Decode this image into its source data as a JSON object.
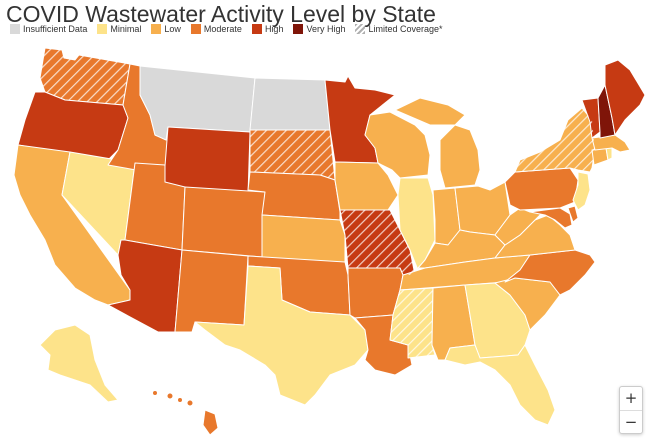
{
  "title": "COVID Wastewater Activity Level by State",
  "legend": [
    {
      "label": "Insufficient Data",
      "level": "insufficient"
    },
    {
      "label": "Minimal",
      "level": "minimal"
    },
    {
      "label": "Low",
      "level": "low"
    },
    {
      "label": "Moderate",
      "level": "moderate"
    },
    {
      "label": "High",
      "level": "high"
    },
    {
      "label": "Very High",
      "level": "veryhigh"
    },
    {
      "label": "Limited Coverage*",
      "level": "limited"
    }
  ],
  "colors": {
    "insufficient": "#d9d9d9",
    "minimal": "#fde38a",
    "low": "#f7b04e",
    "moderate": "#e8782c",
    "high": "#c63a13",
    "veryhigh": "#7f1509",
    "border": "#ffffff"
  },
  "states": {
    "WA": {
      "level": "moderate",
      "limited": true
    },
    "OR": {
      "level": "high"
    },
    "CA": {
      "level": "low"
    },
    "NV": {
      "level": "minimal"
    },
    "ID": {
      "level": "moderate"
    },
    "MT": {
      "level": "insufficient"
    },
    "WY": {
      "level": "high"
    },
    "UT": {
      "level": "moderate"
    },
    "AZ": {
      "level": "high"
    },
    "CO": {
      "level": "moderate"
    },
    "NM": {
      "level": "moderate"
    },
    "ND": {
      "level": "insufficient"
    },
    "SD": {
      "level": "moderate",
      "limited": true
    },
    "NE": {
      "level": "moderate"
    },
    "KS": {
      "level": "low"
    },
    "OK": {
      "level": "moderate"
    },
    "TX": {
      "level": "minimal"
    },
    "MN": {
      "level": "high"
    },
    "IA": {
      "level": "low"
    },
    "MO": {
      "level": "high",
      "limited": true
    },
    "AR": {
      "level": "moderate"
    },
    "LA": {
      "level": "moderate"
    },
    "WI": {
      "level": "low"
    },
    "IL": {
      "level": "minimal"
    },
    "MI": {
      "level": "low"
    },
    "IN": {
      "level": "low"
    },
    "OH": {
      "level": "low"
    },
    "KY": {
      "level": "low"
    },
    "TN": {
      "level": "low"
    },
    "MS": {
      "level": "minimal",
      "limited": true
    },
    "AL": {
      "level": "low"
    },
    "GA": {
      "level": "minimal"
    },
    "FL": {
      "level": "minimal"
    },
    "SC": {
      "level": "low"
    },
    "NC": {
      "level": "moderate"
    },
    "VA": {
      "level": "low"
    },
    "WV": {
      "level": "low"
    },
    "PA": {
      "level": "moderate"
    },
    "NY": {
      "level": "low",
      "limited": true
    },
    "NJ": {
      "level": "minimal"
    },
    "MD": {
      "level": "moderate"
    },
    "DE": {
      "level": "moderate"
    },
    "CT": {
      "level": "low"
    },
    "RI": {
      "level": "minimal"
    },
    "MA": {
      "level": "low"
    },
    "VT": {
      "level": "high"
    },
    "NH": {
      "level": "veryhigh"
    },
    "ME": {
      "level": "high"
    },
    "AK": {
      "level": "minimal"
    },
    "HI": {
      "level": "moderate"
    }
  },
  "zoom": {
    "in_label": "+",
    "out_label": "−"
  }
}
